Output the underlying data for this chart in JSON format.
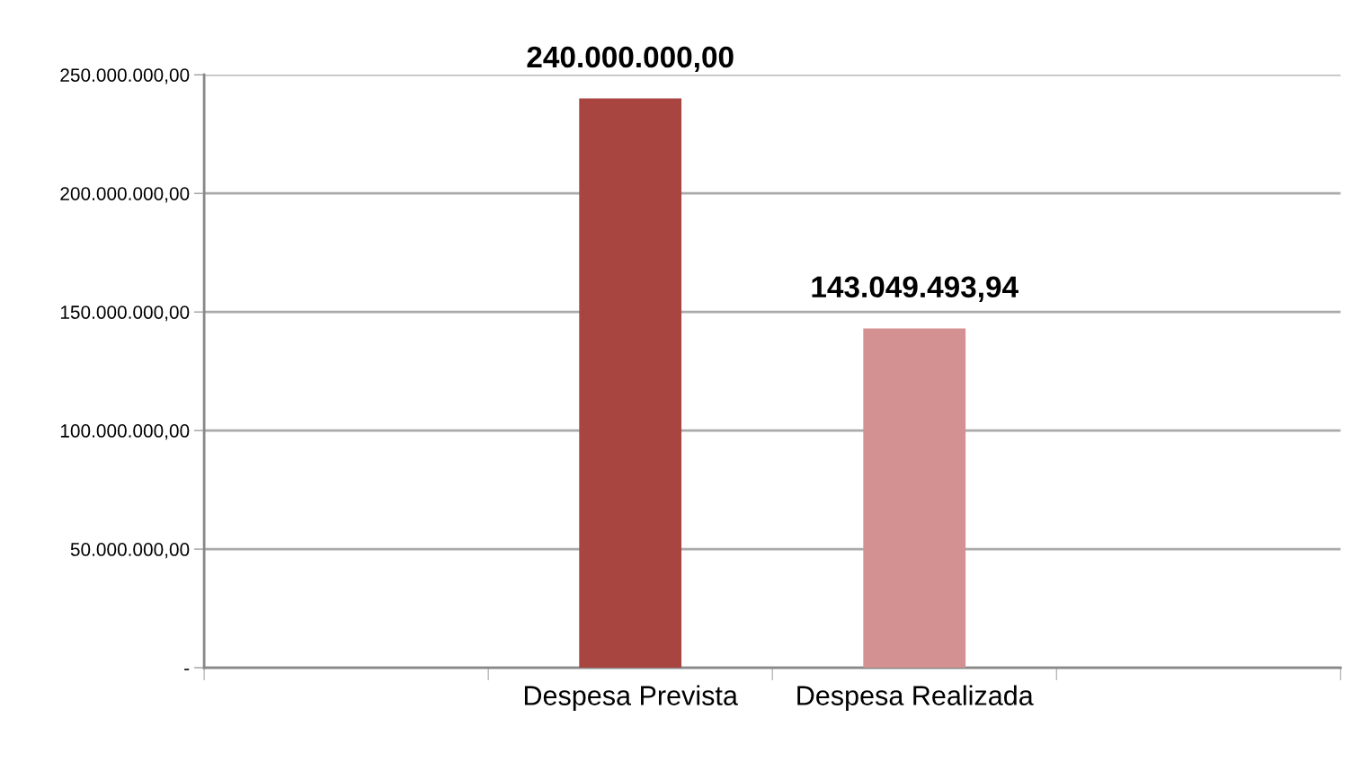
{
  "chart_data": {
    "type": "bar",
    "categories": [
      null,
      "Despesa Prevista",
      "Despesa Realizada",
      null
    ],
    "values": [
      null,
      240000000,
      143049493.94,
      null
    ],
    "colors": [
      "#a94541",
      "#a94541",
      "#d39191",
      "#d39191"
    ],
    "value_labels": [
      null,
      "240.000.000,00",
      "143.049.493,94",
      null
    ],
    "ylim": [
      0,
      250000000
    ],
    "yticks": [
      {
        "value": 0,
        "label": "-"
      },
      {
        "value": 50000000,
        "label": "50.000.000,00"
      },
      {
        "value": 100000000,
        "label": "100.000.000,00"
      },
      {
        "value": 150000000,
        "label": "150.000.000,00"
      },
      {
        "value": 200000000,
        "label": "200.000.000,00"
      },
      {
        "value": 250000000,
        "label": "250.000.000,00"
      }
    ],
    "grid": "y"
  }
}
